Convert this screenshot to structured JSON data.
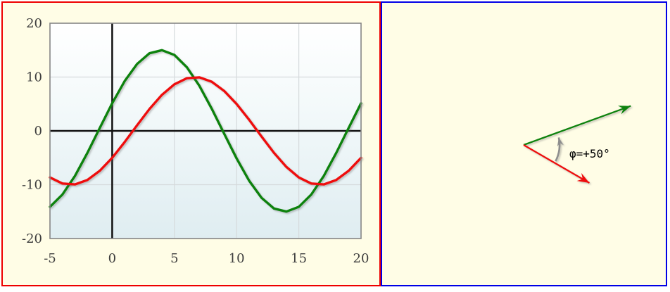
{
  "panels": {
    "waveform": {
      "border_color": "#ee0000",
      "background": "#fffde6"
    },
    "phasor": {
      "border_color": "#0000e6",
      "background": "#fffde6"
    }
  },
  "chart_data": {
    "type": "line",
    "title": "",
    "xlabel": "",
    "ylabel": "",
    "xlim": [
      -5,
      20
    ],
    "ylim": [
      -20,
      20
    ],
    "xticks": [
      -5,
      0,
      5,
      10,
      15,
      20
    ],
    "yticks": [
      -20,
      -10,
      0,
      10,
      20
    ],
    "grid": true,
    "legend": false,
    "x": [
      -5,
      -4,
      -3,
      -2,
      -1,
      0,
      1,
      2,
      3,
      4,
      5,
      6,
      7,
      8,
      9,
      10,
      11,
      12,
      13,
      14,
      15,
      16,
      17,
      18,
      19,
      20
    ],
    "series": [
      {
        "name": "green-sine-amp15-phase+20deg",
        "color": "#0c820c",
        "amplitude": 15,
        "phase_deg": 20,
        "values": [
          -14.1,
          -11.82,
          -8.39,
          -4.13,
          0.52,
          5.13,
          9.24,
          12.43,
          14.42,
          14.99,
          14.1,
          11.82,
          8.39,
          4.13,
          -0.52,
          -5.13,
          -9.24,
          -12.43,
          -14.42,
          -14.99,
          -14.1,
          -11.82,
          -8.39,
          -4.13,
          0.52,
          5.13
        ]
      },
      {
        "name": "red-sine-amp10-phase-30deg",
        "color": "#ee1010",
        "amplitude": 10,
        "phase_deg": -30,
        "values": [
          -8.66,
          -9.78,
          -9.95,
          -9.14,
          -7.43,
          -5.0,
          -2.08,
          1.05,
          4.07,
          6.69,
          8.66,
          9.78,
          9.95,
          9.14,
          7.43,
          5.0,
          2.08,
          -1.05,
          -4.07,
          -6.69,
          -8.66,
          -9.78,
          -9.95,
          -9.14,
          -7.43,
          -5.0
        ]
      }
    ]
  },
  "phasor": {
    "angle_label": "φ=+50°",
    "arc_color": "#8e8e8e",
    "phase_difference_deg": 50,
    "vectors": [
      {
        "name": "green-phasor",
        "color": "#0c820c",
        "angle_deg": 20,
        "length": 15
      },
      {
        "name": "red-phasor",
        "color": "#ee1010",
        "angle_deg": -30,
        "length": 10
      }
    ]
  }
}
